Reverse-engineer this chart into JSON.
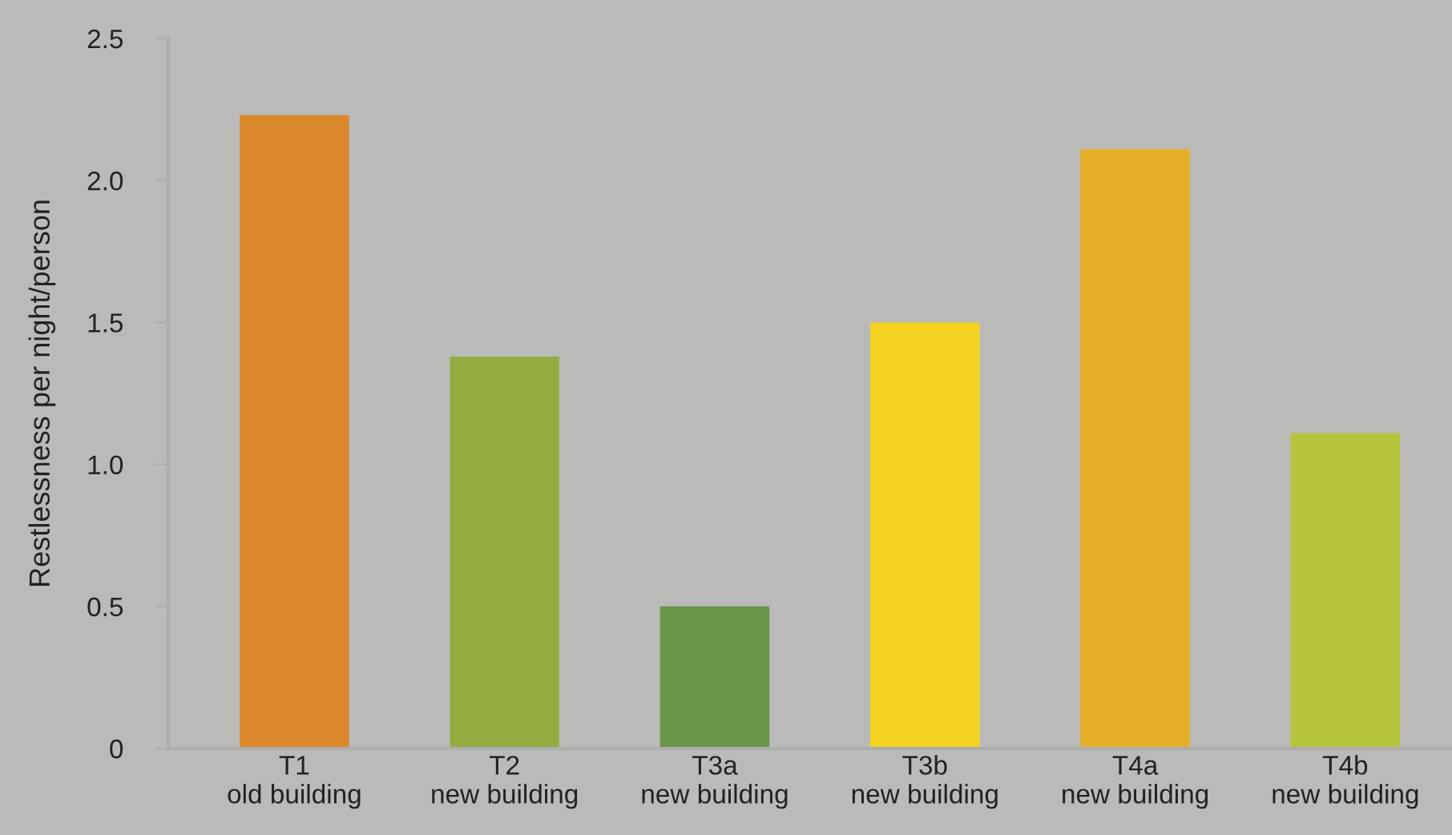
{
  "chart_data": {
    "type": "bar",
    "ylabel": "Restlessness per night/person",
    "categories": [
      "T1\nold building",
      "T2\nnew building",
      "T3a\nnew building",
      "T3b\nnew building",
      "T4a\nnew building",
      "T4b\nnew building"
    ],
    "values": [
      2.23,
      1.38,
      0.5,
      1.5,
      2.11,
      1.11
    ],
    "colors": [
      "#db872b",
      "#94ab40",
      "#699548",
      "#f4d420",
      "#e6af27",
      "#b6c43c"
    ],
    "ylim": [
      0,
      2.5
    ],
    "yticks": [
      {
        "value": 0,
        "label": "0"
      },
      0.5,
      {
        "value": 1,
        "label": "1.0"
      },
      1.5,
      {
        "value": 2,
        "label": "2.0"
      },
      2.5
    ],
    "grid": false
  }
}
